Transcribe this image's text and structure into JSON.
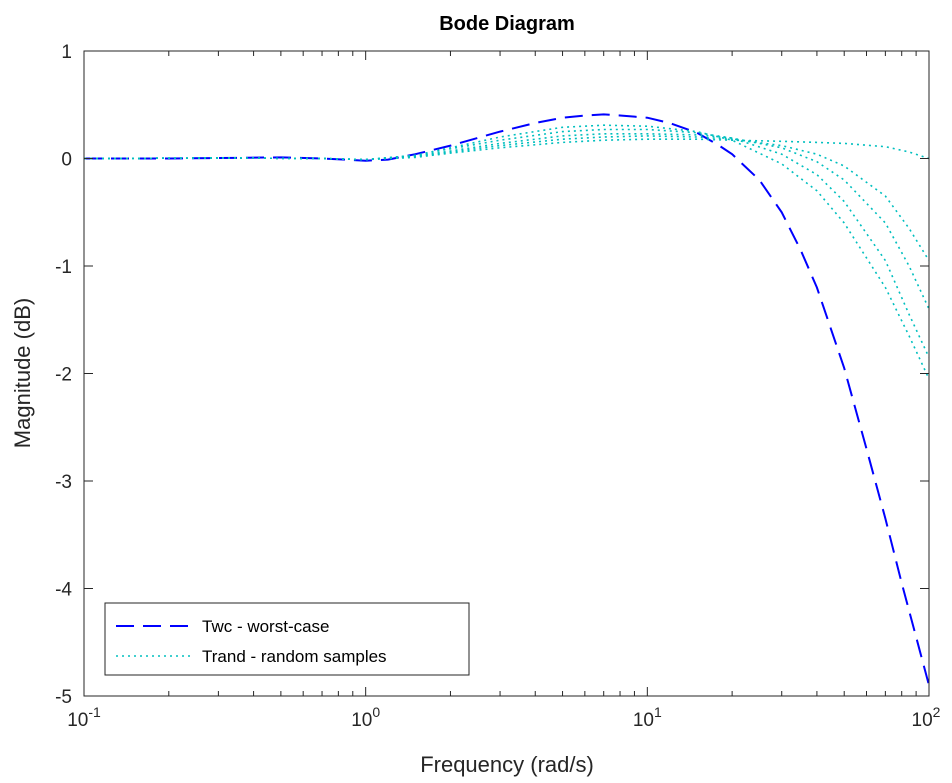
{
  "chart_data": {
    "type": "line",
    "title": "Bode Diagram",
    "xlabel": "Frequency  (rad/s)",
    "ylabel": "Magnitude (dB)",
    "xscale": "log",
    "xlim": [
      0.1,
      100
    ],
    "ylim": [
      -5,
      1
    ],
    "grid": false,
    "legend_position": "bottom-left",
    "x_ticks": [
      {
        "value": 0.1,
        "base": "10",
        "exp": "-1"
      },
      {
        "value": 1,
        "base": "10",
        "exp": "0"
      },
      {
        "value": 10,
        "base": "10",
        "exp": "1"
      },
      {
        "value": 100,
        "base": "10",
        "exp": "2"
      }
    ],
    "y_ticks": [
      {
        "value": 1,
        "label": "1"
      },
      {
        "value": 0,
        "label": "0"
      },
      {
        "value": -1,
        "label": "-1"
      },
      {
        "value": -2,
        "label": "-2"
      },
      {
        "value": -3,
        "label": "-3"
      },
      {
        "value": -4,
        "label": "-4"
      },
      {
        "value": -5,
        "label": "-5"
      }
    ],
    "legend": [
      {
        "label": "Twc - worst-case",
        "color": "#0000ff",
        "style": "dashed"
      },
      {
        "label": "Trand - random samples",
        "color": "#00bfbf",
        "style": "dotted"
      }
    ],
    "series": [
      {
        "color": "#0000ff",
        "style": "dashed",
        "x": [
          0.1,
          0.2,
          0.3,
          0.5,
          0.7,
          1.0,
          1.2,
          1.5,
          2,
          3,
          4,
          5,
          6,
          7,
          8,
          10,
          12,
          15,
          18,
          20,
          25,
          30,
          35,
          40,
          50,
          60,
          70,
          80,
          90,
          100
        ],
        "y": [
          0,
          0,
          0.005,
          0.01,
          0,
          -0.02,
          -0.01,
          0.04,
          0.12,
          0.25,
          0.33,
          0.38,
          0.4,
          0.41,
          0.4,
          0.38,
          0.33,
          0.24,
          0.12,
          0.04,
          -0.2,
          -0.5,
          -0.85,
          -1.2,
          -1.95,
          -2.7,
          -3.35,
          -3.95,
          -4.45,
          -4.9
        ]
      },
      {
        "color": "#00bfbf",
        "style": "dotted",
        "x": [
          0.1,
          0.3,
          0.7,
          1.0,
          1.5,
          2,
          3,
          5,
          7,
          10,
          15,
          20,
          30,
          40,
          50,
          70,
          85,
          100
        ],
        "y": [
          0,
          0.005,
          0,
          -0.01,
          0.03,
          0.1,
          0.2,
          0.29,
          0.31,
          0.3,
          0.25,
          0.17,
          -0.05,
          -0.3,
          -0.6,
          -1.2,
          -1.65,
          -2.05
        ]
      },
      {
        "color": "#00bfbf",
        "style": "dotted",
        "x": [
          0.1,
          0.3,
          0.7,
          1.0,
          1.5,
          2,
          3,
          5,
          7,
          10,
          15,
          20,
          30,
          40,
          50,
          70,
          85,
          100
        ],
        "y": [
          0,
          0.005,
          0,
          -0.01,
          0.03,
          0.09,
          0.17,
          0.25,
          0.27,
          0.27,
          0.24,
          0.19,
          0.04,
          -0.15,
          -0.4,
          -0.95,
          -1.45,
          -1.85
        ]
      },
      {
        "color": "#00bfbf",
        "style": "dotted",
        "x": [
          0.1,
          0.3,
          0.7,
          1.0,
          1.5,
          2,
          3,
          5,
          7,
          10,
          15,
          20,
          30,
          40,
          50,
          70,
          85,
          100
        ],
        "y": [
          0,
          0.005,
          0,
          -0.01,
          0.02,
          0.07,
          0.14,
          0.21,
          0.23,
          0.23,
          0.22,
          0.19,
          0.1,
          -0.03,
          -0.2,
          -0.6,
          -1.0,
          -1.4
        ]
      },
      {
        "color": "#00bfbf",
        "style": "dotted",
        "x": [
          0.1,
          0.3,
          0.7,
          1.0,
          1.5,
          2,
          3,
          5,
          7,
          10,
          15,
          20,
          30,
          40,
          50,
          70,
          85,
          100
        ],
        "y": [
          0,
          0.005,
          0,
          -0.01,
          0.02,
          0.06,
          0.12,
          0.18,
          0.2,
          0.21,
          0.2,
          0.18,
          0.12,
          0.04,
          -0.07,
          -0.35,
          -0.65,
          -0.95
        ]
      },
      {
        "color": "#00bfbf",
        "style": "dotted",
        "x": [
          0.1,
          0.3,
          0.7,
          1.0,
          1.5,
          2,
          3,
          5,
          7,
          10,
          15,
          20,
          30,
          40,
          50,
          70,
          85,
          100
        ],
        "y": [
          0,
          0.005,
          0,
          -0.01,
          0.01,
          0.05,
          0.1,
          0.15,
          0.17,
          0.18,
          0.18,
          0.17,
          0.16,
          0.15,
          0.14,
          0.11,
          0.06,
          0.0
        ]
      }
    ]
  }
}
